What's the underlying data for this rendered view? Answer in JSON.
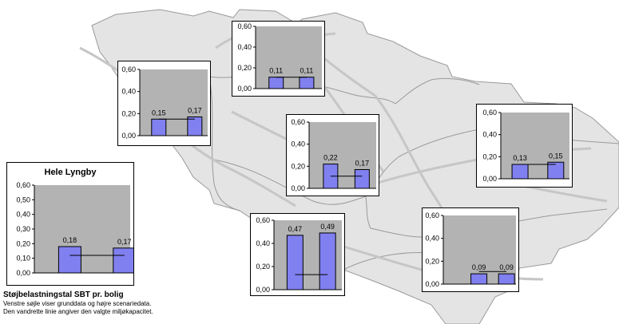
{
  "colors": {
    "map_fill": "#e4e4e4",
    "map_stroke": "#9a9a9a",
    "road": "#c6c6c6",
    "plot_bg": "#b3b3b3",
    "bar_fill": "#8080f0",
    "bar_stroke": "#000000",
    "capacity_line": "#000000"
  },
  "legend": {
    "title": "Støjbelastningstal SBT pr. bolig",
    "line1": "Venstre søjle viser grunddata og højre scenariedata.",
    "line2": "Den vandrette linie angiver den valgte miljøkapacitet."
  },
  "chart_data": [
    {
      "id": "hele-lyngby",
      "type": "bar",
      "title": "Hele Lyngby",
      "ylim": [
        0,
        0.6
      ],
      "yticks": [
        "0,00",
        "0,10",
        "0,20",
        "0,30",
        "0,40",
        "0,50",
        "0,60"
      ],
      "yvalues": [
        0,
        0.1,
        0.2,
        0.3,
        0.4,
        0.5,
        0.6
      ],
      "values": [
        0.18,
        0.17
      ],
      "labels": [
        "0,18",
        "0,17"
      ],
      "capacity": 0.12
    },
    {
      "id": "nordvest",
      "type": "bar",
      "ylim": [
        0,
        0.6
      ],
      "yticks": [
        "0,00",
        "0,20",
        "0,40",
        "0,60"
      ],
      "yvalues": [
        0,
        0.2,
        0.4,
        0.6
      ],
      "values": [
        0.15,
        0.17
      ],
      "labels": [
        "0,15",
        "0,17"
      ],
      "capacity": 0.15
    },
    {
      "id": "nord",
      "type": "bar",
      "ylim": [
        0,
        0.6
      ],
      "yticks": [
        "0,00",
        "0,20",
        "0,40",
        "0,60"
      ],
      "yvalues": [
        0,
        0.2,
        0.4,
        0.6
      ],
      "values": [
        0.11,
        0.11
      ],
      "labels": [
        "0,11",
        "0,11"
      ],
      "capacity": 0.11
    },
    {
      "id": "centrum",
      "type": "bar",
      "ylim": [
        0,
        0.6
      ],
      "yticks": [
        "0,00",
        "0,20",
        "0,40",
        "0,60"
      ],
      "yvalues": [
        0,
        0.2,
        0.4,
        0.6
      ],
      "values": [
        0.22,
        0.17
      ],
      "labels": [
        "0,22",
        "0,17"
      ],
      "capacity": 0.11
    },
    {
      "id": "oest",
      "type": "bar",
      "ylim": [
        0,
        0.6
      ],
      "yticks": [
        "0,00",
        "0,20",
        "0,40",
        "0,60"
      ],
      "yvalues": [
        0,
        0.2,
        0.4,
        0.6
      ],
      "values": [
        0.13,
        0.15
      ],
      "labels": [
        "0,13",
        "0,15"
      ],
      "capacity": 0.13
    },
    {
      "id": "syd",
      "type": "bar",
      "ylim": [
        0,
        0.6
      ],
      "yticks": [
        "0,00",
        "0,20",
        "0,40",
        "0,60"
      ],
      "yvalues": [
        0,
        0.2,
        0.4,
        0.6
      ],
      "values": [
        0.47,
        0.49
      ],
      "labels": [
        "0,47",
        "0,49"
      ],
      "capacity": 0.13
    },
    {
      "id": "sydoest",
      "type": "bar",
      "ylim": [
        0,
        0.6
      ],
      "yticks": [
        "0,00",
        "0,20",
        "0,40",
        "0,60"
      ],
      "yvalues": [
        0,
        0.2,
        0.4,
        0.6
      ],
      "values": [
        0.09,
        0.09
      ],
      "labels": [
        "0,09",
        "0,09"
      ],
      "capacity": 0.11
    }
  ]
}
